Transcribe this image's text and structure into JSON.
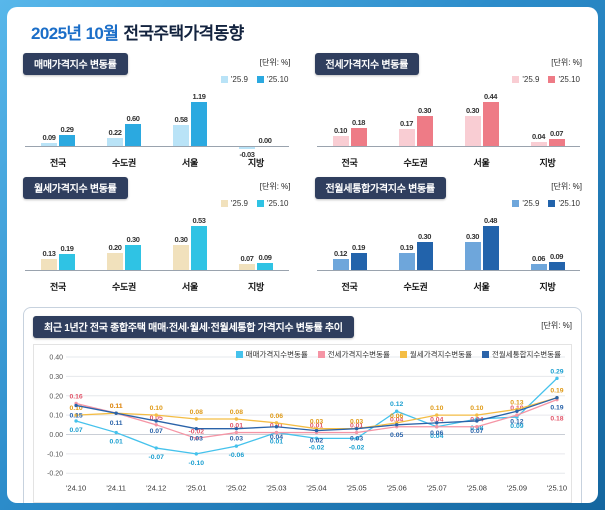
{
  "page": {
    "header": {
      "title_month": "2025년 10월",
      "title_rest": "전국주택가격동향"
    }
  },
  "chart_data": [
    {
      "type": "bar",
      "title": "매매가격지수 변동률",
      "unit": "[단위: %]",
      "categories": [
        "전국",
        "수도권",
        "서울",
        "지방"
      ],
      "series": [
        {
          "name": "'25.9",
          "values": [
            0.09,
            0.22,
            0.58,
            -0.03
          ]
        },
        {
          "name": "'25.10",
          "values": [
            0.29,
            0.6,
            1.19,
            0.0
          ]
        }
      ],
      "colors": [
        "#b9e3f7",
        "#2ba9e0"
      ],
      "ylim": [
        -0.03,
        1.19
      ]
    },
    {
      "type": "bar",
      "title": "전세가격지수 변동률",
      "unit": "[단위: %]",
      "categories": [
        "전국",
        "수도권",
        "서울",
        "지방"
      ],
      "series": [
        {
          "name": "'25.9",
          "values": [
            0.1,
            0.17,
            0.3,
            0.04
          ]
        },
        {
          "name": "'25.10",
          "values": [
            0.18,
            0.3,
            0.44,
            0.07
          ]
        }
      ],
      "colors": [
        "#f9cdd3",
        "#ee7b86"
      ],
      "ylim": [
        0,
        0.44
      ]
    },
    {
      "type": "bar",
      "title": "월세가격지수 변동률",
      "unit": "[단위: %]",
      "categories": [
        "전국",
        "수도권",
        "서울",
        "지방"
      ],
      "series": [
        {
          "name": "'25.9",
          "values": [
            0.13,
            0.2,
            0.3,
            0.07
          ]
        },
        {
          "name": "'25.10",
          "values": [
            0.19,
            0.3,
            0.53,
            0.09
          ]
        }
      ],
      "colors": [
        "#f1e1bc",
        "#2fc3e4"
      ],
      "ylim": [
        0,
        0.53
      ]
    },
    {
      "type": "bar",
      "title": "전월세통합가격지수 변동률",
      "unit": "[단위: %]",
      "categories": [
        "전국",
        "수도권",
        "서울",
        "지방"
      ],
      "series": [
        {
          "name": "'25.9",
          "values": [
            0.12,
            0.19,
            0.3,
            0.06
          ]
        },
        {
          "name": "'25.10",
          "values": [
            0.19,
            0.3,
            0.48,
            0.09
          ]
        }
      ],
      "colors": [
        "#6ea6db",
        "#2263ab"
      ],
      "ylim": [
        0,
        0.48
      ]
    },
    {
      "type": "line",
      "title": "최근 1년간 전국 종합주택 매매·전세·월세·전월세통합 가격지수 변동률 추이",
      "unit": "[단위: %]",
      "x": [
        "'24.10",
        "'24.11",
        "'24.12",
        "'25.01",
        "'25.02",
        "'25.03",
        "'25.04",
        "'25.05",
        "'25.06",
        "'25.07",
        "'25.08",
        "'25.09",
        "'25.10"
      ],
      "ylim": [
        -0.2,
        0.4
      ],
      "yticks": [
        0.4,
        0.3,
        0.2,
        0.1,
        0.0,
        -0.1,
        -0.2
      ],
      "grid": true,
      "legend_position": "top-right",
      "series": [
        {
          "name": "매매가격지수변동률",
          "color": "#45c2ec",
          "label_color": "#1b9fd0",
          "dy": 11,
          "dy_overrides": {
            "8": -5,
            "12": -5
          },
          "values": [
            0.07,
            0.01,
            -0.07,
            -0.1,
            -0.06,
            0.01,
            -0.02,
            -0.02,
            0.12,
            0.04,
            0.08,
            0.09,
            0.29
          ]
        },
        {
          "name": "전세가격지수변동률",
          "color": "#f595a5",
          "label_color": "#e2556a",
          "dy": -5,
          "dy_overrides": {
            "12": 21
          },
          "values": [
            0.16,
            0.11,
            0.05,
            -0.02,
            0.01,
            0.01,
            0.01,
            0.01,
            0.04,
            0.04,
            0.04,
            0.1,
            0.18
          ]
        },
        {
          "name": "월세가격지수변동률",
          "color": "#f4bd44",
          "label_color": "#df9a17",
          "dy": -5,
          "dy_overrides": {},
          "values": [
            0.1,
            0.11,
            0.1,
            0.08,
            0.08,
            0.06,
            0.03,
            0.03,
            0.06,
            0.1,
            0.1,
            0.13,
            0.19
          ]
        },
        {
          "name": "전월세통합지수변동률",
          "color": "#2a63a9",
          "label_color": "#2a63a9",
          "dy": 12,
          "dy_overrides": {},
          "values": [
            0.15,
            0.11,
            0.07,
            0.03,
            0.03,
            0.04,
            0.02,
            0.03,
            0.05,
            0.06,
            0.07,
            0.12,
            0.19
          ]
        }
      ]
    }
  ]
}
